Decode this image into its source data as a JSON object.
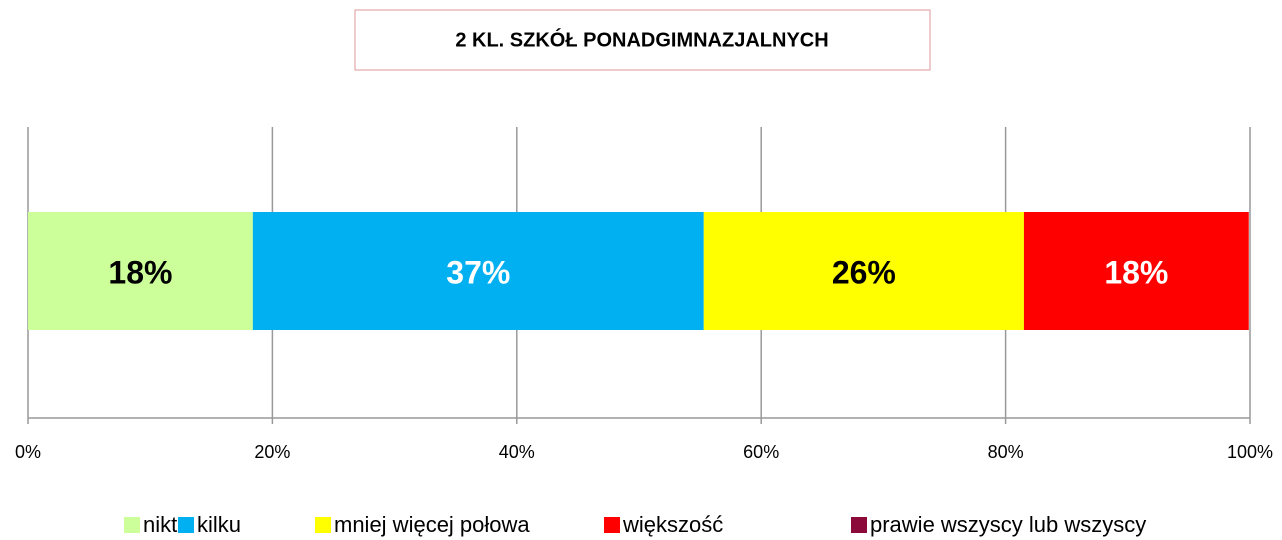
{
  "chart_data": {
    "type": "stacked-hbar",
    "title": "2 KL. SZKÓŁ PONADGIMNAZJALNYCH",
    "series": [
      {
        "name": "nikt",
        "color": "#ccff99",
        "label_color": "#000000",
        "values": [
          18.4
        ],
        "value_labels": [
          "18%"
        ]
      },
      {
        "name": "kilku",
        "color": "#00b0f0",
        "label_color": "#ffffff",
        "values": [
          36.9
        ],
        "value_labels": [
          "37%"
        ]
      },
      {
        "name": "mniej więcej połowa",
        "color": "#ffff00",
        "label_color": "#000000",
        "values": [
          26.2
        ],
        "value_labels": [
          "26%"
        ]
      },
      {
        "name": "większość",
        "color": "#ff0000",
        "label_color": "#ffffff",
        "values": [
          18.4
        ],
        "value_labels": [
          "18%"
        ]
      },
      {
        "name": "prawie wszyscy lub wszyscy",
        "color": "#8b0a3a",
        "label_color": "#ffffff",
        "values": [
          0
        ]
      }
    ],
    "xlim": [
      0,
      100
    ],
    "xticks": [
      {
        "value": 0,
        "label": "0%"
      },
      {
        "value": 20,
        "label": "20%"
      },
      {
        "value": 40,
        "label": "40%"
      },
      {
        "value": 60,
        "label": "60%"
      },
      {
        "value": 80,
        "label": "80%"
      },
      {
        "value": 100,
        "label": "100%"
      }
    ],
    "grid": true
  }
}
